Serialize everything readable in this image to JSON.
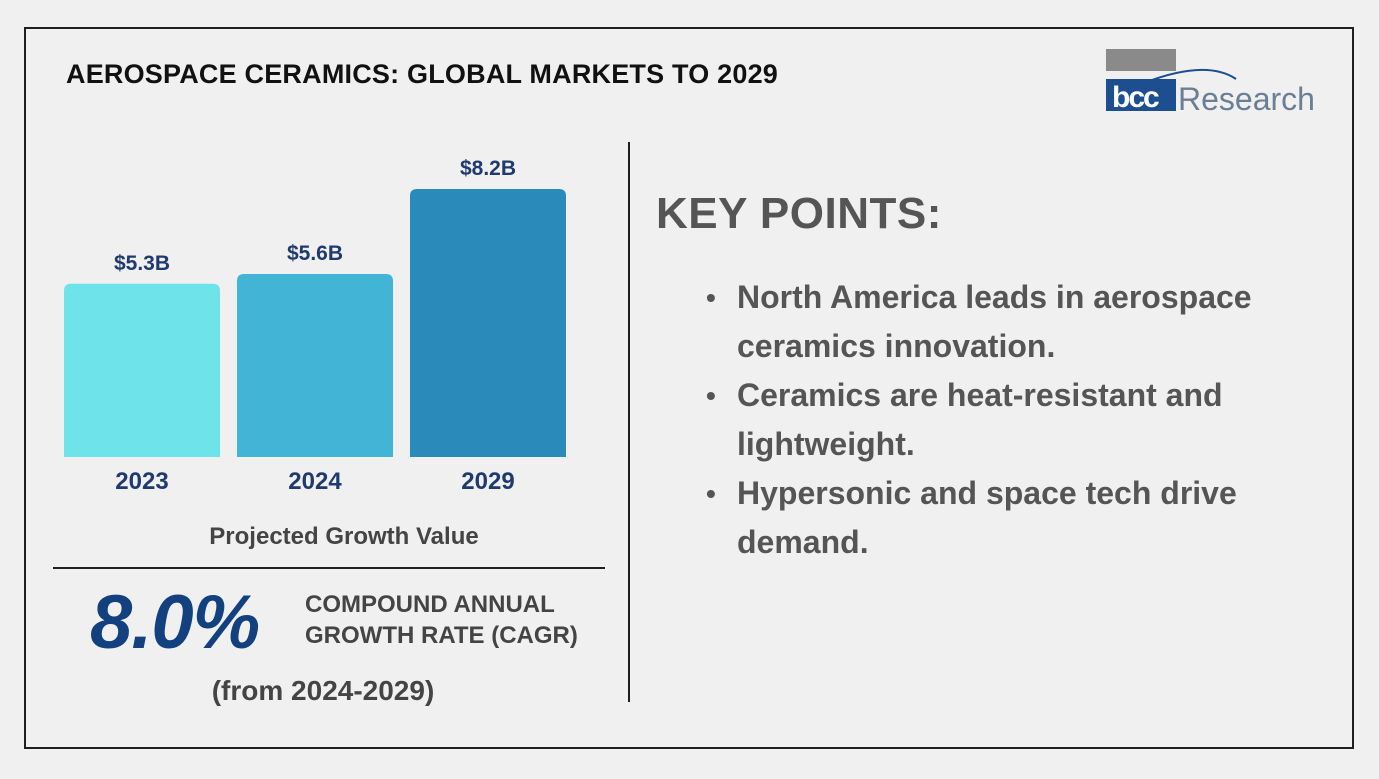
{
  "header": {
    "title": "AEROSPACE CERAMICS: GLOBAL MARKETS TO 2029",
    "logo_text": "bccResearch"
  },
  "chart_data": {
    "type": "bar",
    "categories": [
      "2023",
      "2024",
      "2029"
    ],
    "values": [
      5.3,
      5.6,
      8.2
    ],
    "data_labels": [
      "$5.3B",
      "$5.6B",
      "$8.2B"
    ],
    "colors": [
      "#6ee3ea",
      "#42b5d6",
      "#2a8bbb"
    ],
    "title": "",
    "xlabel": "Projected Growth Value",
    "ylabel": "",
    "ylim": [
      0,
      8.2
    ],
    "grid": false,
    "legend": "none"
  },
  "cagr": {
    "value": "8.0%",
    "label_line1": "COMPOUND ANNUAL",
    "label_line2": "GROWTH RATE (CAGR)",
    "range": "(from 2024-2029)"
  },
  "key_points": {
    "heading": "KEY POINTS:",
    "items": [
      {
        "line1": "North America leads in aerospace",
        "line2": "ceramics innovation."
      },
      {
        "line1": "Ceramics are heat-resistant and",
        "line2": "lightweight."
      },
      {
        "line1": "Hypersonic and space tech drive",
        "line2": "demand."
      }
    ]
  },
  "colors": {
    "accent_dark_blue": "#13407e",
    "label_navy": "#1f3a6e",
    "text_gray": "#555555"
  }
}
